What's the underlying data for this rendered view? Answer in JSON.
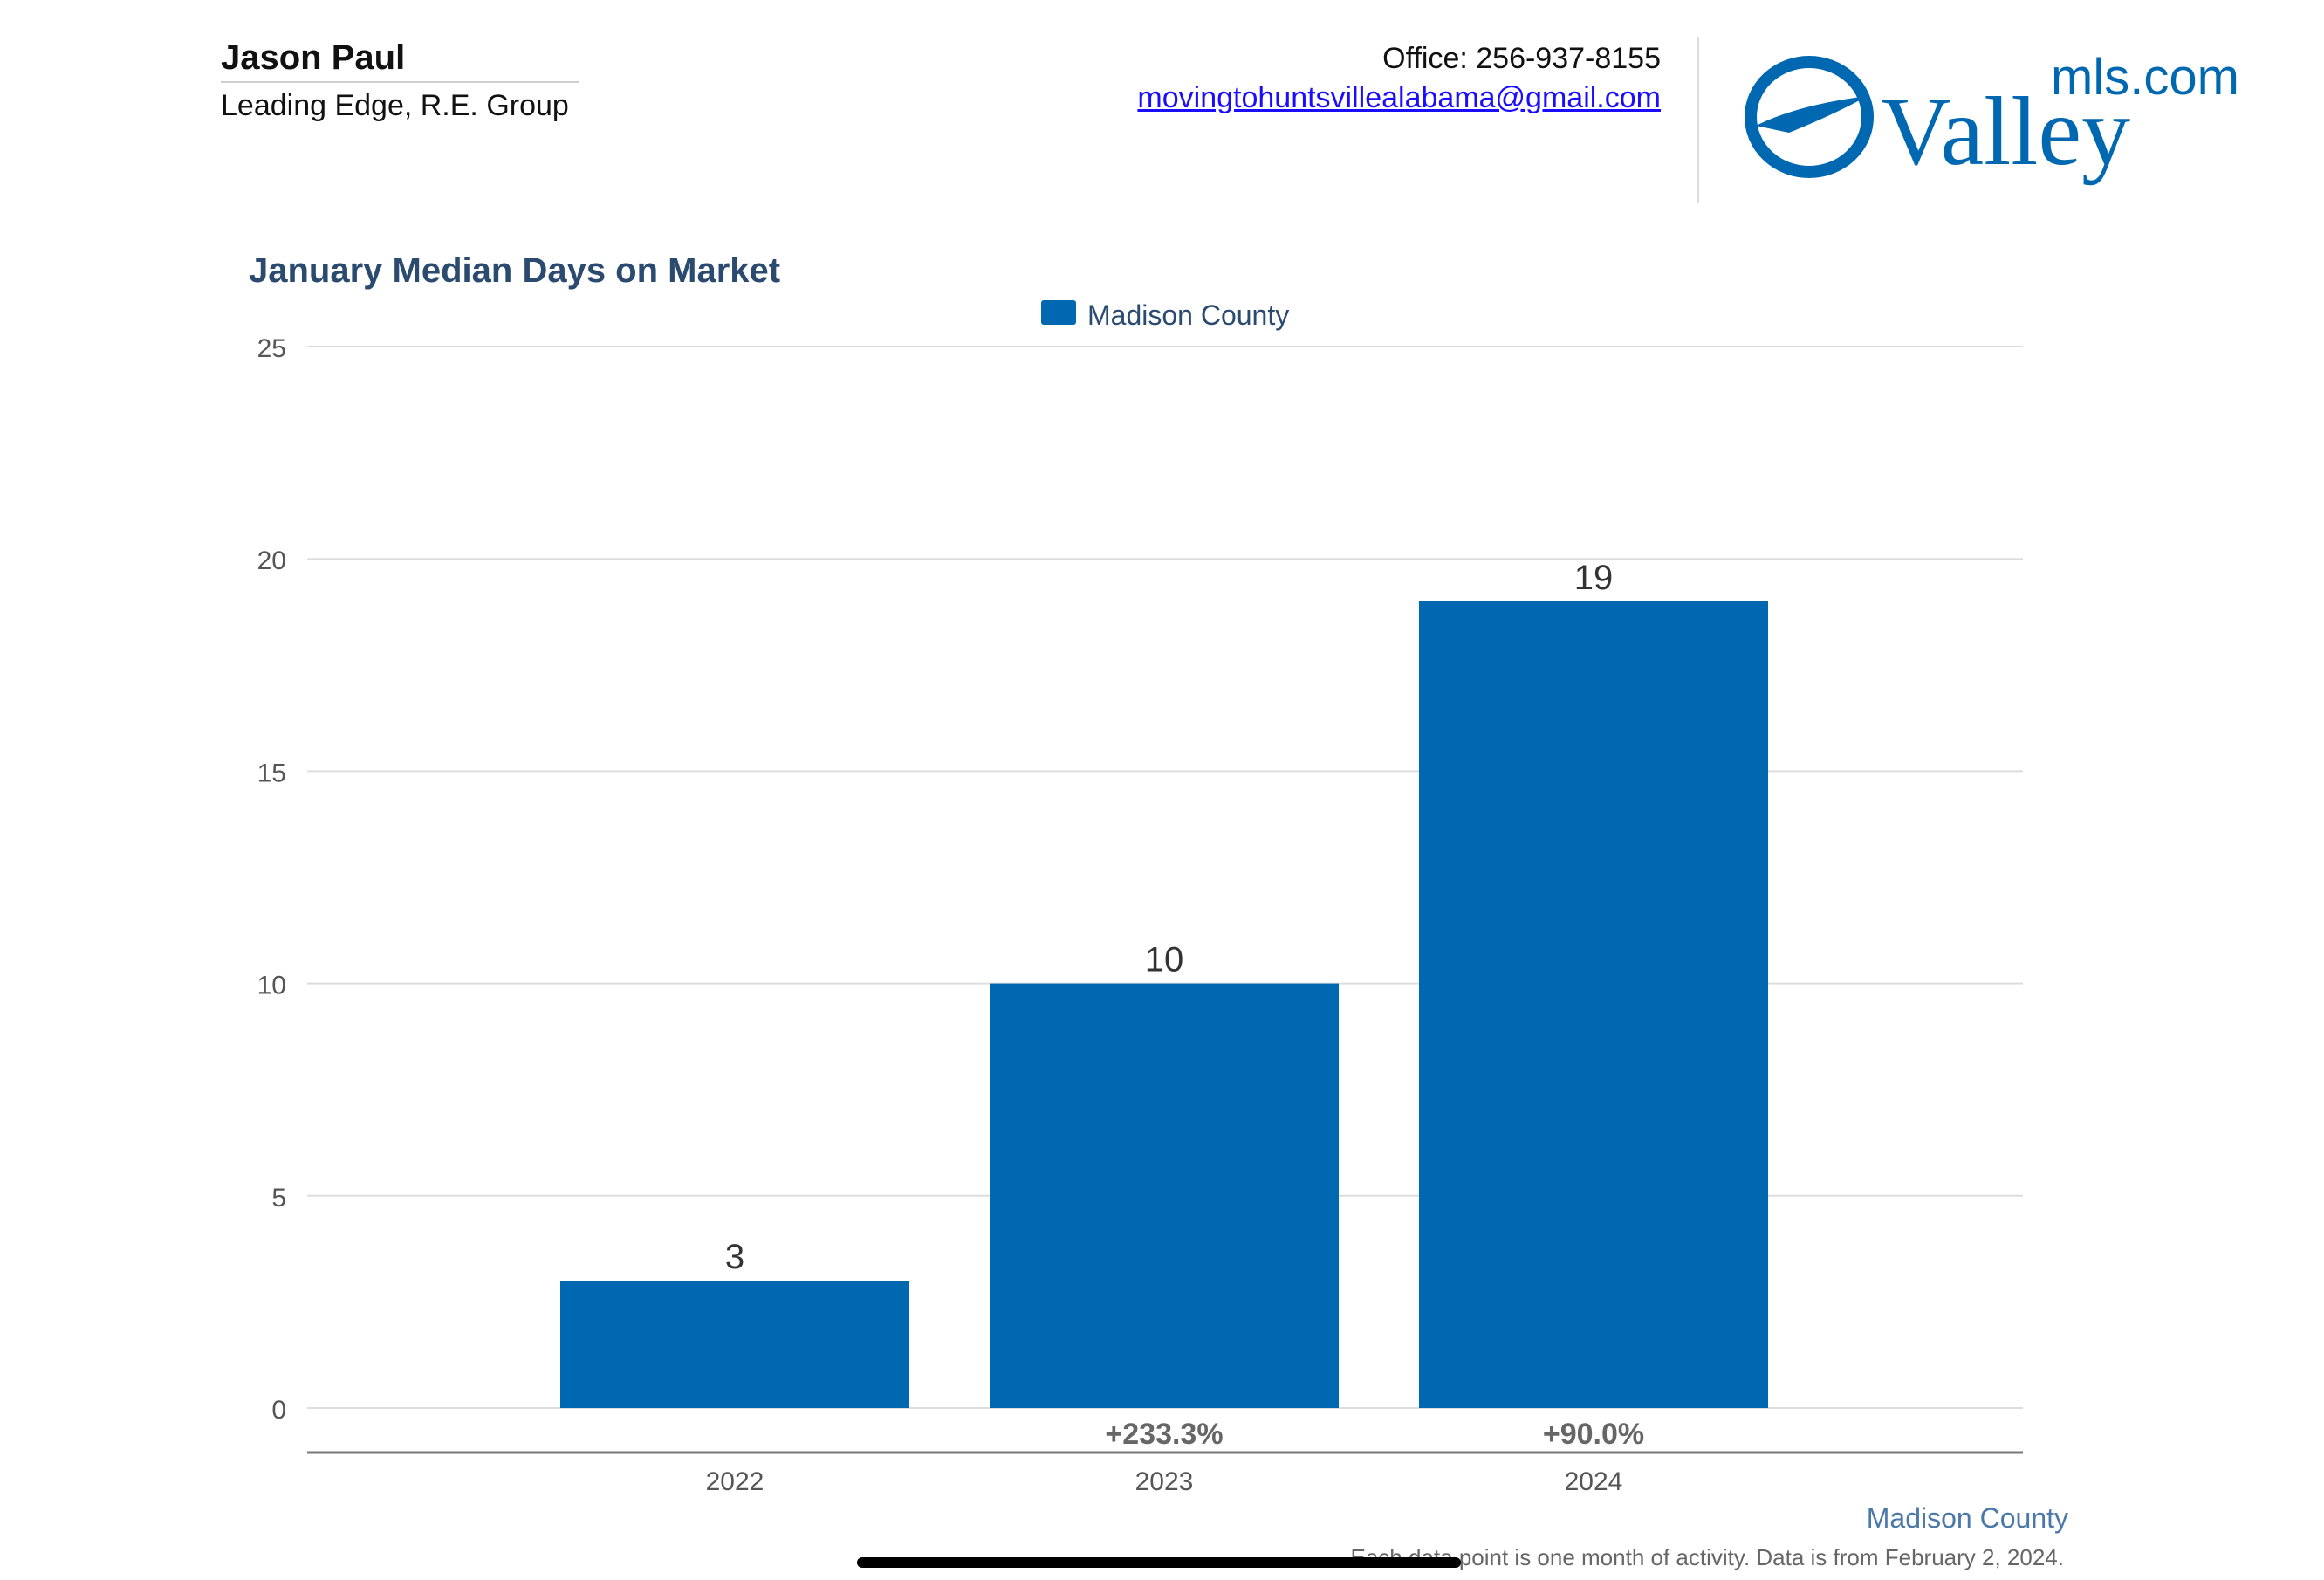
{
  "header": {
    "agent_name": "Jason Paul",
    "agent_company": "Leading Edge, R.E. Group",
    "office": "Office: 256-937-8155",
    "email": "movingtohuntsvillealabama@gmail.com"
  },
  "logo": {
    "wordmark": "Valley",
    "suffix": "mls.com",
    "color": "#0067b1"
  },
  "chart_data": {
    "type": "bar",
    "title": "January Median Days on Market",
    "categories": [
      "2022",
      "2023",
      "2024"
    ],
    "series": [
      {
        "name": "Madison County",
        "values": [
          3,
          10,
          19
        ],
        "color": "#0067b1"
      }
    ],
    "value_labels": [
      "3",
      "10",
      "19"
    ],
    "change_labels": [
      "",
      "+233.3%",
      "+90.0%"
    ],
    "ylim": [
      0,
      25
    ],
    "yticks": [
      "0",
      "5",
      "10",
      "15",
      "20",
      "25"
    ],
    "grid": true,
    "legend": "top-center",
    "xlabel": "",
    "ylabel": "",
    "footer_label": "Madison County",
    "footnote": "Each data point is one month of activity. Data is from February 2, 2024."
  },
  "colors": {
    "title": "#2b4a6f",
    "bar": "#0067b1",
    "grid": "#dddddd",
    "axis_text": "#555555",
    "footer_label": "#4a78a8"
  }
}
